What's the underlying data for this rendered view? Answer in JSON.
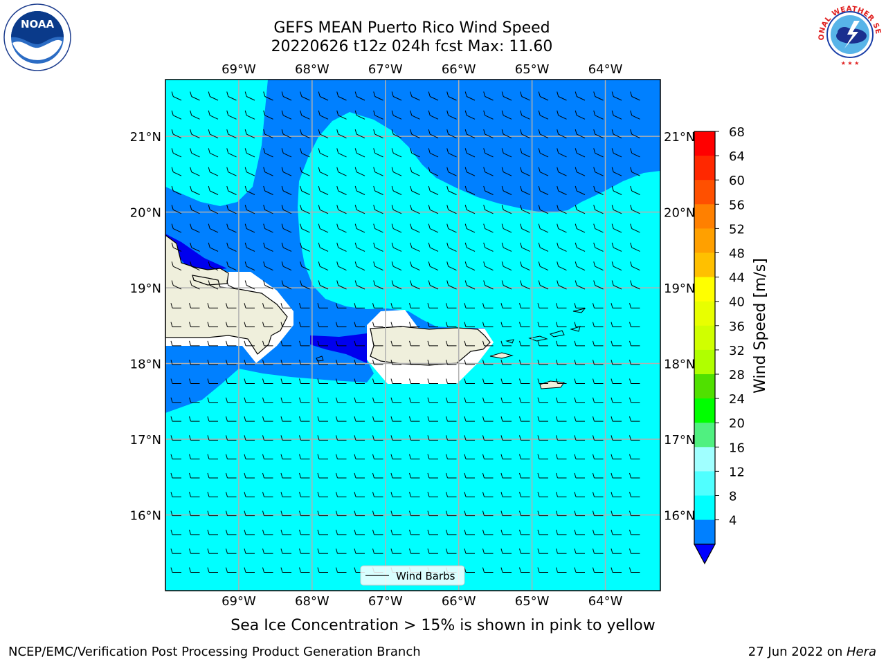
{
  "header": {
    "title_line1": "GEFS MEAN Puerto Rico Wind Speed",
    "title_line2": "20220626 t12z 024h fcst   Max: 11.60"
  },
  "logos": {
    "left": {
      "name": "noaa-logo",
      "text": "NOAA",
      "ring_text": "NATIONAL OCEANIC AND ATMOSPHERIC ADMINISTRATION · U.S. DEPARTMENT OF COMMERCE"
    },
    "right": {
      "name": "nws-logo",
      "ring_text": "NATIONAL WEATHER SERVICE"
    }
  },
  "map": {
    "lon_ticks": [
      "69°W",
      "68°W",
      "67°W",
      "66°W",
      "65°W",
      "64°W"
    ],
    "lat_ticks": [
      "21°N",
      "20°N",
      "19°N",
      "18°N",
      "17°N",
      "16°N"
    ],
    "lon_values": [
      -69,
      -68,
      -67,
      -66,
      -65,
      -64
    ],
    "lat_values": [
      21,
      20,
      19,
      18,
      17,
      16
    ],
    "extent": {
      "lon_min": -70,
      "lon_max": -63.25,
      "lat_min": 15,
      "lat_max": 21.75
    },
    "legend_label": "Wind Barbs",
    "colors": {
      "land": "#efefdc",
      "level_4_8": "#0080ff",
      "level_8_12": "#00ffff",
      "level_below_4": "#0000ee",
      "grid": "#b0b0b0"
    }
  },
  "colorbar": {
    "label": "Wind Speed [m/s]",
    "ticks": [
      "68",
      "64",
      "60",
      "56",
      "52",
      "48",
      "44",
      "40",
      "36",
      "32",
      "28",
      "24",
      "20",
      "16",
      "12",
      "8",
      "4"
    ],
    "colors": [
      "#ff0000",
      "#ff2800",
      "#ff5000",
      "#ff8000",
      "#ffa000",
      "#ffc000",
      "#ffff00",
      "#e8ff00",
      "#d0ff00",
      "#b0ff00",
      "#50e000",
      "#00ff00",
      "#50f080",
      "#a0ffff",
      "#50ffff",
      "#00ffff",
      "#0080ff"
    ],
    "under_color": "#0000ff"
  },
  "caption": "Sea Ice Concentration > 15% is shown in pink to yellow",
  "footer": {
    "left": "NCEP/EMC/Verification Post Processing Product Generation Branch",
    "date": "27 Jun 2022 on ",
    "machine": "Hera"
  }
}
